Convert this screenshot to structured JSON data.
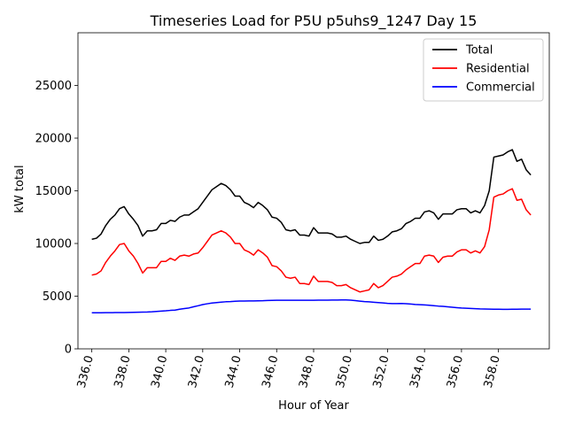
{
  "chart_data": {
    "type": "line",
    "title": "Timeseries Load for P5U p5uhs9_1247  Day 15",
    "xlabel": "Hour of Year",
    "ylabel": "kW total",
    "xlim": [
      335.25,
      360.75
    ],
    "ylim": [
      0,
      30000
    ],
    "xticks": [
      336,
      338,
      340,
      342,
      344,
      346,
      348,
      350,
      352,
      354,
      356,
      358
    ],
    "xtick_labels": [
      "336.0",
      "338.0",
      "340.0",
      "342.0",
      "344.0",
      "346.0",
      "348.0",
      "350.0",
      "352.0",
      "354.0",
      "356.0",
      "358.0"
    ],
    "yticks": [
      0,
      5000,
      10000,
      15000,
      20000,
      25000
    ],
    "ytick_labels": [
      "0",
      "5000",
      "10000",
      "15000",
      "20000",
      "25000"
    ],
    "legend_position": "top-right",
    "x": [
      336.0,
      336.25,
      336.5,
      336.75,
      337.0,
      337.25,
      337.5,
      337.75,
      338.0,
      338.25,
      338.5,
      338.75,
      339.0,
      339.25,
      339.5,
      339.75,
      340.0,
      340.25,
      340.5,
      340.75,
      341.0,
      341.25,
      341.5,
      341.75,
      342.0,
      342.25,
      342.5,
      342.75,
      343.0,
      343.25,
      343.5,
      343.75,
      344.0,
      344.25,
      344.5,
      344.75,
      345.0,
      345.25,
      345.5,
      345.75,
      346.0,
      346.25,
      346.5,
      346.75,
      347.0,
      347.25,
      347.5,
      347.75,
      348.0,
      348.25,
      348.5,
      348.75,
      349.0,
      349.25,
      349.5,
      349.75,
      350.0,
      350.25,
      350.5,
      350.75,
      351.0,
      351.25,
      351.5,
      351.75,
      352.0,
      352.25,
      352.5,
      352.75,
      353.0,
      353.25,
      353.5,
      353.75,
      354.0,
      354.25,
      354.5,
      354.75,
      355.0,
      355.25,
      355.5,
      355.75,
      356.0,
      356.25,
      356.5,
      356.75,
      357.0,
      357.25,
      357.5,
      357.75,
      358.0,
      358.25,
      358.5,
      358.75,
      359.0,
      359.25,
      359.5,
      359.75
    ],
    "series": [
      {
        "name": "Total",
        "color": "#000000",
        "values": [
          10400,
          10500,
          10900,
          11700,
          12300,
          12700,
          13300,
          13500,
          12800,
          12300,
          11700,
          10700,
          11200,
          11200,
          11300,
          11900,
          11900,
          12200,
          12100,
          12500,
          12700,
          12700,
          13000,
          13300,
          13900,
          14500,
          15100,
          15400,
          15700,
          15500,
          15100,
          14500,
          14500,
          13900,
          13700,
          13400,
          13900,
          13600,
          13200,
          12500,
          12400,
          12000,
          11300,
          11200,
          11300,
          10800,
          10800,
          10700,
          11500,
          11000,
          11000,
          11000,
          10900,
          10600,
          10600,
          10700,
          10400,
          10200,
          10000,
          10100,
          10100,
          10700,
          10300,
          10400,
          10700,
          11100,
          11200,
          11400,
          11900,
          12100,
          12400,
          12400,
          13000,
          13100,
          12900,
          12300,
          12800,
          12800,
          12800,
          13200,
          13300,
          13300,
          12900,
          13100,
          12900,
          13600,
          15000,
          18200,
          18300,
          18400,
          18700,
          18900,
          17800,
          18000,
          17000,
          16500
        ]
      },
      {
        "name": "Residential",
        "color": "#ff0000",
        "values": [
          7000,
          7100,
          7400,
          8200,
          8800,
          9300,
          9900,
          10000,
          9300,
          8800,
          8100,
          7200,
          7700,
          7700,
          7700,
          8300,
          8300,
          8600,
          8400,
          8800,
          8900,
          8800,
          9000,
          9100,
          9600,
          10200,
          10800,
          11000,
          11200,
          11000,
          10600,
          10000,
          10000,
          9400,
          9200,
          8900,
          9400,
          9100,
          8700,
          7900,
          7800,
          7400,
          6800,
          6700,
          6800,
          6200,
          6200,
          6100,
          6900,
          6400,
          6400,
          6400,
          6300,
          6000,
          6000,
          6100,
          5800,
          5600,
          5400,
          5500,
          5600,
          6200,
          5800,
          6000,
          6400,
          6800,
          6900,
          7100,
          7500,
          7800,
          8100,
          8100,
          8800,
          8900,
          8800,
          8200,
          8700,
          8800,
          8800,
          9200,
          9400,
          9400,
          9100,
          9300,
          9100,
          9700,
          11300,
          14400,
          14600,
          14700,
          15000,
          15200,
          14100,
          14200,
          13200,
          12700
        ]
      },
      {
        "name": "Commercial",
        "color": "#0000ff",
        "values": [
          3420,
          3420,
          3420,
          3430,
          3430,
          3440,
          3440,
          3450,
          3460,
          3470,
          3480,
          3490,
          3500,
          3520,
          3550,
          3580,
          3610,
          3650,
          3680,
          3760,
          3820,
          3880,
          3990,
          4090,
          4200,
          4280,
          4350,
          4390,
          4430,
          4470,
          4490,
          4520,
          4540,
          4540,
          4550,
          4550,
          4560,
          4570,
          4590,
          4600,
          4610,
          4610,
          4610,
          4610,
          4610,
          4610,
          4610,
          4610,
          4610,
          4620,
          4620,
          4620,
          4630,
          4630,
          4640,
          4640,
          4620,
          4580,
          4530,
          4490,
          4460,
          4420,
          4390,
          4360,
          4320,
          4300,
          4300,
          4310,
          4290,
          4250,
          4210,
          4190,
          4170,
          4140,
          4100,
          4060,
          4030,
          3990,
          3950,
          3910,
          3880,
          3860,
          3830,
          3810,
          3790,
          3780,
          3770,
          3760,
          3760,
          3750,
          3750,
          3760,
          3760,
          3770,
          3770,
          3770
        ]
      }
    ]
  }
}
